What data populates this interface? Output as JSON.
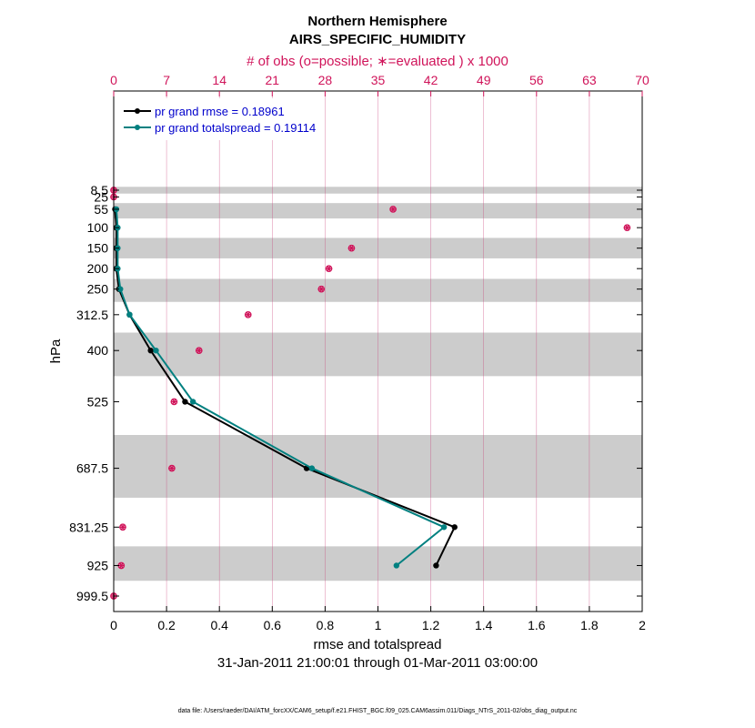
{
  "chart_data": {
    "type": "line",
    "title": "Northern Hemisphere",
    "subtitle": "AIRS_SPECIFIC_HUMIDITY",
    "xlabel": "rmse and totalspread",
    "ylabel": "hPa",
    "top_xlabel": "# of obs (o=possible; ∗=evaluated ) x 1000",
    "date_range": "31-Jan-2011 21:00:01 through 01-Mar-2011 03:00:00",
    "footnote": "data file: /Users/raeder/DAI/ATM_forcXX/CAM6_setup/f.e21.FHIST_BGC.f09_025.CAM6assim.011/Diags_NTrS_2011-02/obs_diag_output.nc",
    "xlim": [
      0,
      2
    ],
    "x_ticks": [
      "0",
      "0.2",
      "0.4",
      "0.6",
      "0.8",
      "1",
      "1.2",
      "1.4",
      "1.6",
      "1.8",
      "2"
    ],
    "top_xlim": [
      0,
      70
    ],
    "top_ticks": [
      "0",
      "7",
      "14",
      "21",
      "28",
      "35",
      "42",
      "49",
      "56",
      "63",
      "70"
    ],
    "levels": [
      8.5,
      25,
      55,
      100,
      150,
      200,
      250,
      312.5,
      400,
      525,
      687.5,
      831.25,
      925,
      999.5
    ],
    "level_labels": [
      "8.5",
      "25",
      "55",
      "100",
      "150",
      "200",
      "250",
      "312.5",
      "400",
      "525",
      "687.5",
      "831.25",
      "925",
      "999.5"
    ],
    "series": [
      {
        "name": "pr grand rmse = 0.18961",
        "color": "#000000",
        "levels": [
          55,
          100,
          150,
          200,
          250,
          312.5,
          400,
          525,
          687.5,
          831.25,
          925
        ],
        "values": [
          0.005,
          0.01,
          0.01,
          0.01,
          0.02,
          0.06,
          0.14,
          0.27,
          0.73,
          1.29,
          1.22
        ]
      },
      {
        "name": "pr grand totalspread = 0.19114",
        "color": "#008080",
        "levels": [
          55,
          100,
          150,
          200,
          250,
          312.5,
          400,
          525,
          687.5,
          831.25,
          925
        ],
        "values": [
          0.01,
          0.015,
          0.015,
          0.015,
          0.025,
          0.06,
          0.16,
          0.3,
          0.75,
          1.25,
          1.07
        ]
      }
    ],
    "obs_counts": {
      "color": "#d0145a",
      "levels": [
        8.5,
        25,
        55,
        100,
        150,
        200,
        250,
        312.5,
        400,
        525,
        687.5,
        831.25,
        925,
        999.5
      ],
      "possible": [
        0,
        0,
        37,
        68,
        31.5,
        28.5,
        27.5,
        17.8,
        11.3,
        8,
        7.7,
        1.2,
        1,
        0
      ],
      "evaluated": [
        0,
        0,
        37,
        68,
        31.5,
        28.5,
        27.5,
        17.8,
        11.3,
        8,
        7.7,
        1.2,
        1,
        0
      ]
    },
    "legend_position": "top-left",
    "grid": "vertical"
  }
}
